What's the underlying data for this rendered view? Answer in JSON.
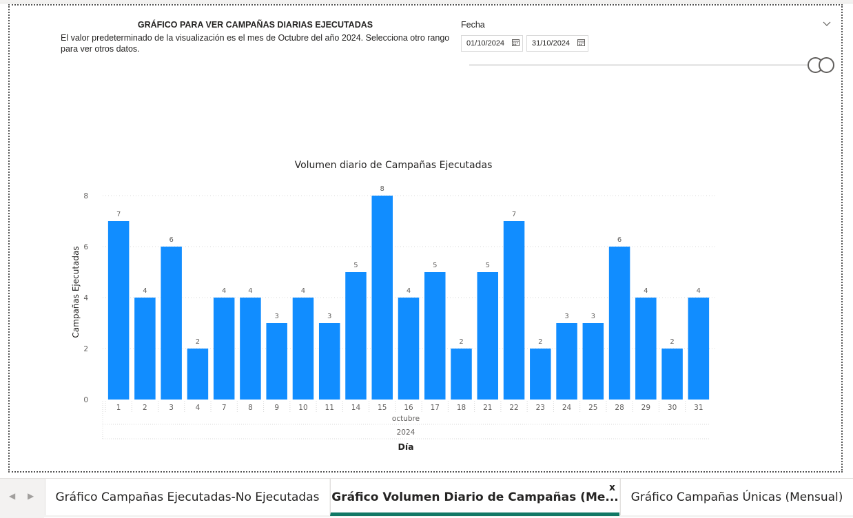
{
  "info": {
    "title": "GRÁFICO PARA VER CAMPAÑAS DIARIAS EJECUTADAS",
    "description": "El valor predeterminado de la visualización es el mes de Octubre del año 2024. Selecciona otro rango para ver otros datos."
  },
  "slicer": {
    "label": "Fecha",
    "start_date": "01/10/2024",
    "end_date": "31/10/2024",
    "icons": {
      "dropdown": "chevron-down-icon",
      "calendar": "calendar-icon"
    }
  },
  "chart_data": {
    "type": "bar",
    "title": "Volumen diario de Campañas Ejecutadas",
    "xlabel": "Día",
    "ylabel": "Campañas Ejecutadas",
    "x_group_labels": [
      "octubre",
      "2024"
    ],
    "categories": [
      "1",
      "2",
      "3",
      "4",
      "7",
      "8",
      "9",
      "10",
      "11",
      "14",
      "15",
      "16",
      "17",
      "18",
      "21",
      "22",
      "23",
      "24",
      "25",
      "28",
      "29",
      "30",
      "31"
    ],
    "values": [
      7,
      4,
      6,
      2,
      4,
      4,
      3,
      4,
      3,
      5,
      8,
      4,
      5,
      2,
      5,
      7,
      2,
      3,
      3,
      6,
      4,
      2,
      4
    ],
    "ylim": [
      0,
      8
    ],
    "yticks": [
      0,
      2,
      4,
      6,
      8
    ],
    "grid": true,
    "data_labels": true,
    "bar_color": "#118DFF"
  },
  "tabs": [
    {
      "label": "Gráfico Campañas Ejecutadas-No Ejecutadas",
      "active": false
    },
    {
      "label": "Gráfico Volumen Diario de Campañas (Me...",
      "active": true,
      "close": "x"
    },
    {
      "label": "Gráfico Campañas Únicas (Mensual)",
      "active": false
    }
  ],
  "nav": {
    "prev_icon": "chevron-left-icon",
    "next_icon": "chevron-right-icon",
    "prev": "◀",
    "next": "▶"
  },
  "colors": {
    "accent": "#117865",
    "bar": "#118DFF"
  }
}
